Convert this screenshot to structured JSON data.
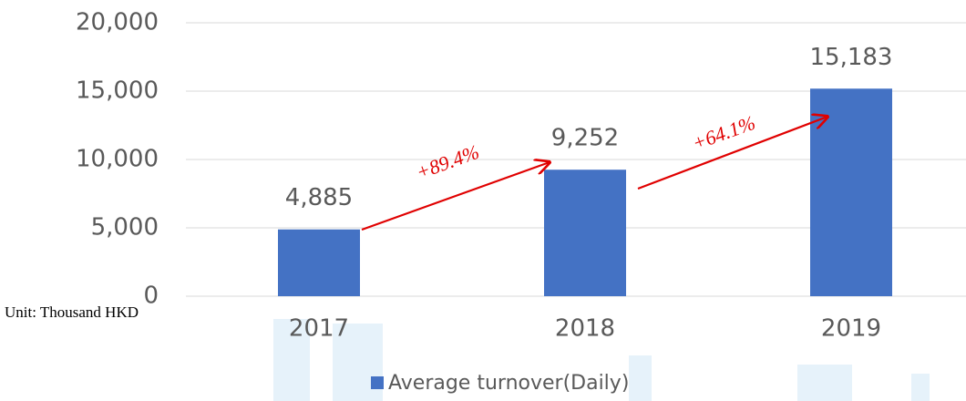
{
  "chart_data": {
    "type": "bar",
    "categories": [
      "2017",
      "2018",
      "2019"
    ],
    "series": [
      {
        "name": "Average turnover(Daily)",
        "color": "#4472c4",
        "values": [
          4885,
          9252,
          15183
        ],
        "value_labels": [
          "4,885",
          "9,252",
          "15,183"
        ]
      }
    ],
    "ylim": [
      0,
      20000
    ],
    "yticks": [
      0,
      {
        "value": 5000,
        "label": "5,000"
      },
      {
        "value": 10000,
        "label": "10,000"
      },
      {
        "value": 15000,
        "label": "15,000"
      },
      {
        "value": 20000,
        "label": "20,000"
      }
    ],
    "grid": true,
    "annotations": [
      "+89.4%",
      "+64.1%",
      "Unit: Thousand HKD"
    ]
  }
}
